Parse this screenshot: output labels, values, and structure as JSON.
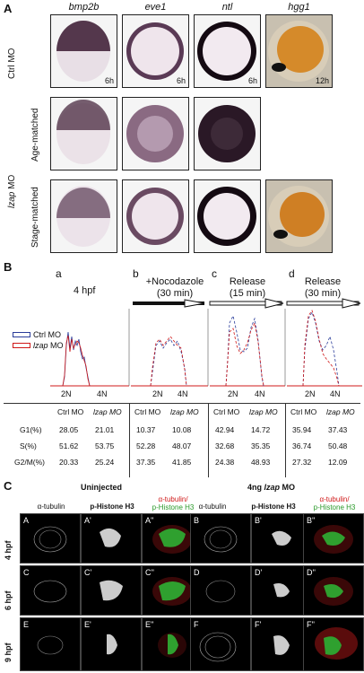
{
  "panelA": {
    "label": "A",
    "genes": [
      "bmp2b",
      "eve1",
      "ntl",
      "hgg1"
    ],
    "rows": [
      {
        "label": "Ctrl MO",
        "times": [
          "6h",
          "6h",
          "6h",
          "12h"
        ]
      },
      {
        "label": "Age-matched",
        "times": [
          "",
          "",
          "",
          ""
        ]
      },
      {
        "label": "Stage-matched",
        "times": [
          "",
          "",
          "",
          ""
        ]
      }
    ],
    "group_label_italic": "lzap",
    "group_label_rest": " MO"
  },
  "panelB": {
    "label": "B",
    "sub": [
      {
        "letter": "a",
        "title1": "4 hpf",
        "title2": ""
      },
      {
        "letter": "b",
        "title1": "+Nocodazole",
        "title2": "(30 min)"
      },
      {
        "letter": "c",
        "title1": "Release",
        "title2": "(15 min)"
      },
      {
        "letter": "d",
        "title1": "Release",
        "title2": "(30 min)"
      }
    ],
    "legend": [
      {
        "name": "Ctrl MO",
        "color": "#2a3c9a"
      },
      {
        "name_italic": "lzap",
        "name_rest": " MO",
        "color": "#d01818"
      }
    ],
    "xticks": [
      "2N",
      "4N"
    ],
    "table": {
      "cols": [
        "Ctrl MO",
        "lzap MO"
      ],
      "rows": [
        {
          "label": "G1(%)",
          "values": [
            "28.05",
            "21.01",
            "10.37",
            "10.08",
            "42.94",
            "14.72",
            "35.94",
            "37.43"
          ]
        },
        {
          "label": "S(%)",
          "values": [
            "51.62",
            "53.75",
            "52.28",
            "48.07",
            "32.68",
            "35.35",
            "36.74",
            "50.48"
          ]
        },
        {
          "label": "G2/M(%)",
          "values": [
            "20.33",
            "25.24",
            "37.35",
            "41.85",
            "24.38",
            "48.93",
            "27.32",
            "12.09"
          ]
        }
      ]
    }
  },
  "panelC": {
    "label": "C",
    "group1": "Uninjected",
    "group2_pre": "4ng ",
    "group2_italic": "lzap",
    "group2_post": " MO",
    "headers": [
      "α-tubulin",
      "p-Histone H3",
      "α-tubulin/",
      "p-Histone H3"
    ],
    "times": [
      "4 hpf",
      "6 hpf",
      "9 hpf"
    ],
    "tiles": [
      [
        "A",
        "A'",
        "A''",
        "B",
        "B'",
        "B''"
      ],
      [
        "C",
        "C'",
        "C''",
        "D",
        "D'",
        "D''"
      ],
      [
        "E",
        "E'",
        "E''",
        "F",
        "F'",
        "F''"
      ]
    ]
  }
}
